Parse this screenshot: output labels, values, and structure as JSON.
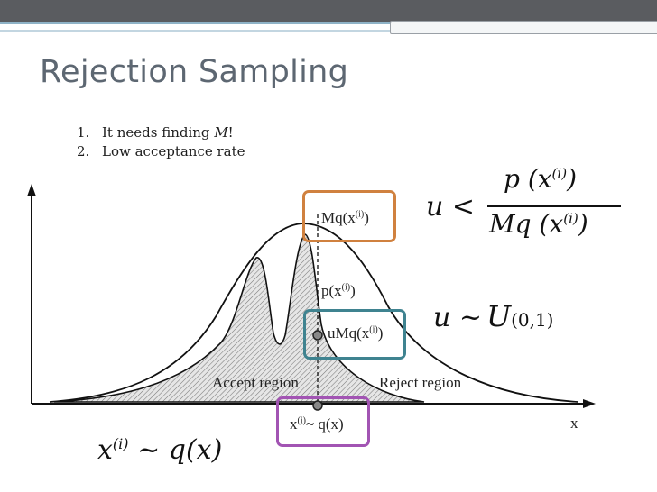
{
  "slide": {
    "title": "Rejection Sampling",
    "bullets": [
      {
        "num": "1.",
        "text_before": "It needs finding ",
        "emph": "M",
        "text_after": "!"
      },
      {
        "num": "2.",
        "text_before": "Low acceptance rate",
        "emph": "",
        "text_after": ""
      }
    ]
  },
  "figure": {
    "labels": {
      "mq": "Mq(x",
      "mq_sup": "(i)",
      "mq_close": ")",
      "p": "p(x",
      "p_sup": "(i)",
      "p_close": ")",
      "umq": "uMq(x",
      "umq_sup": "(i)",
      "umq_close": ")",
      "accept": "Accept region",
      "reject": "Reject region",
      "xi": "x",
      "xi_sup": "(i)",
      "xi_rest": "~ q(x)",
      "x_axis": "x"
    },
    "formulas": {
      "ratio_u": "u <",
      "ratio_num": "p (x",
      "ratio_num_sup": "(i)",
      "ratio_num_close": ")",
      "ratio_den": "Mq (x",
      "ratio_den_sup": "(i)",
      "ratio_den_close": ")",
      "uniform": "u ~",
      "uniform_U": "U",
      "uniform_sub": "(0,1)",
      "sample_x": "x",
      "sample_sup": "(i)",
      "sample_rest": "~ q(x)"
    },
    "colors": {
      "orange": "#d0813f",
      "teal": "#3f8390",
      "purple": "#a254b3"
    }
  }
}
